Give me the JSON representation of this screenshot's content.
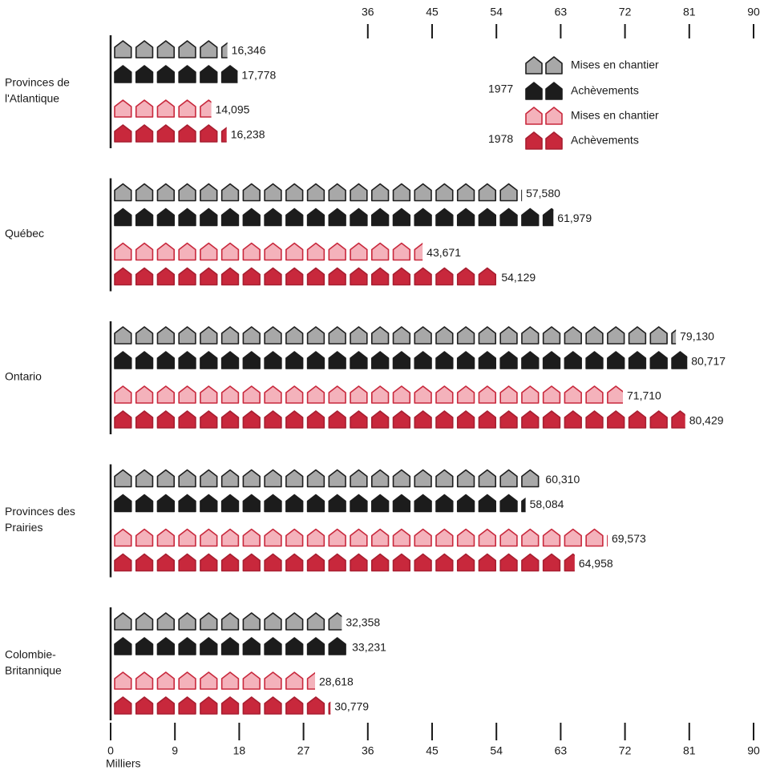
{
  "chart_data": {
    "type": "pictograph",
    "x_label": "Milliers",
    "categories": [
      [
        "Provinces de",
        "l'Atlantique"
      ],
      [
        "Québec"
      ],
      [
        "Ontario"
      ],
      [
        "Provinces des",
        "Prairies"
      ],
      [
        "Colombie-",
        "Britannique"
      ]
    ],
    "groups": [
      {
        "label": "1977",
        "series": [
          {
            "name": "Mises en chantier",
            "color": "#a8a8a8",
            "stroke": "#1e1e1e",
            "values": [
              16.346,
              57.58,
              79.13,
              60.31,
              32.358
            ],
            "value_labels": [
              "16,346",
              "57,580",
              "79,130",
              "60,310",
              "32,358"
            ]
          },
          {
            "name": "Achèvements",
            "color": "#1c1c1c",
            "stroke": "#1c1c1c",
            "values": [
              17.778,
              61.979,
              80.717,
              58.084,
              33.231
            ],
            "value_labels": [
              "17,778",
              "61,979",
              "80,717",
              "58,084",
              "33,231"
            ]
          }
        ]
      },
      {
        "label": "1978",
        "series": [
          {
            "name": "Mises en chantier",
            "color": "#f4b2bb",
            "stroke": "#c8283c",
            "values": [
              14.095,
              43.671,
              71.71,
              69.573,
              28.618
            ],
            "value_labels": [
              "14,095",
              "43,671",
              "71,710",
              "69,573",
              "28,618"
            ]
          },
          {
            "name": "Achèvements",
            "color": "#c8283c",
            "stroke": "#a81e30",
            "values": [
              16.238,
              54.129,
              80.429,
              64.958,
              30.779
            ],
            "value_labels": [
              "16,238",
              "54,129",
              "80,429",
              "64,958",
              "30,779"
            ]
          }
        ]
      }
    ],
    "xlim": [
      0,
      90
    ],
    "xticks": [
      0,
      9,
      18,
      27,
      36,
      45,
      54,
      63,
      72,
      81,
      90
    ]
  }
}
